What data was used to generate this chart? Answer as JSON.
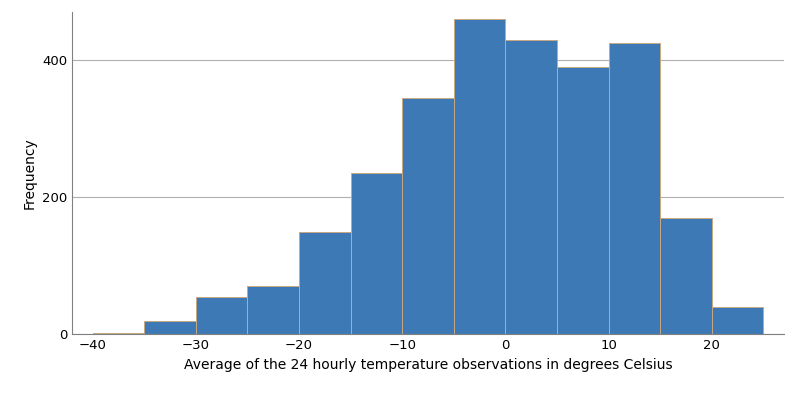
{
  "bin_edges": [
    -40,
    -35,
    -30,
    -25,
    -20,
    -15,
    -10,
    -5,
    0,
    5,
    10,
    15,
    20,
    25
  ],
  "frequencies": [
    2,
    20,
    55,
    70,
    150,
    235,
    345,
    460,
    430,
    390,
    425,
    170,
    40
  ],
  "bar_color": "#3d7ab5",
  "bar_edge_color": "#c8a882",
  "bar_edge_width": 0.7,
  "xlabel": "Average of the 24 hourly temperature observations in degrees Celsius",
  "ylabel": "Frequency",
  "xlim": [
    -42,
    27
  ],
  "ylim": [
    0,
    470
  ],
  "xticks": [
    -40,
    -30,
    -20,
    -10,
    0,
    10,
    20
  ],
  "yticks": [
    0,
    200,
    400
  ],
  "background_color": "#ffffff",
  "grid_color": "#b0b0b0",
  "grid_linewidth": 0.8,
  "xlabel_fontsize": 10,
  "ylabel_fontsize": 10,
  "tick_fontsize": 9.5,
  "spine_color": "#808080"
}
